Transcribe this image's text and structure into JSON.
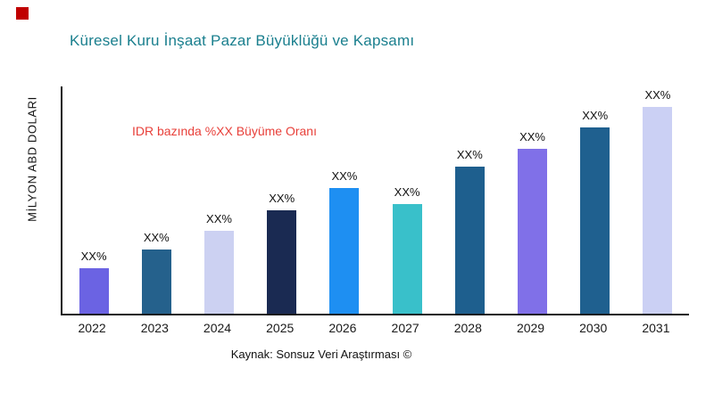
{
  "page": {
    "title": "Küresel Kuru İnşaat Pazar Büyüklüğü ve Kapsamı",
    "annotation": "IDR bazında %XX Büyüme Oranı",
    "ylabel": "MİLYON ABD DOLARI",
    "source": "Kaynak: Sonsuz Veri Araştırması ©",
    "colors": {
      "title": "#1a7f8e",
      "annotation": "#e8403a",
      "brand_mark": "#c00000",
      "axis": "#1a1a1a"
    }
  },
  "chart_data": {
    "type": "bar",
    "title": "Küresel Kuru İnşaat Pazar Büyüklüğü ve Kapsamı",
    "xlabel": "",
    "ylabel": "MİLYON ABD DOLARI",
    "annotation": "IDR bazında %XX Büyüme Oranı",
    "categories": [
      "2022",
      "2023",
      "2024",
      "2025",
      "2026",
      "2027",
      "2028",
      "2029",
      "2030",
      "2031"
    ],
    "values": [
      22,
      31,
      40,
      50,
      61,
      53,
      71,
      80,
      90,
      100
    ],
    "bar_labels": [
      "XX%",
      "XX%",
      "XX%",
      "XX%",
      "XX%",
      "XX%",
      "XX%",
      "XX%",
      "XX%",
      "XX%"
    ],
    "bar_colors": [
      "#6b63e3",
      "#25618c",
      "#ccd1f2",
      "#1a2a52",
      "#1e8ff2",
      "#39c0ca",
      "#1e5f8e",
      "#8070e8",
      "#1f608f",
      "#cbd0f4"
    ],
    "ylim": [
      0,
      110
    ],
    "grid": false,
    "legend": "none",
    "value_note": "values are relative bar heights (unitless); data labels show placeholder XX%"
  }
}
